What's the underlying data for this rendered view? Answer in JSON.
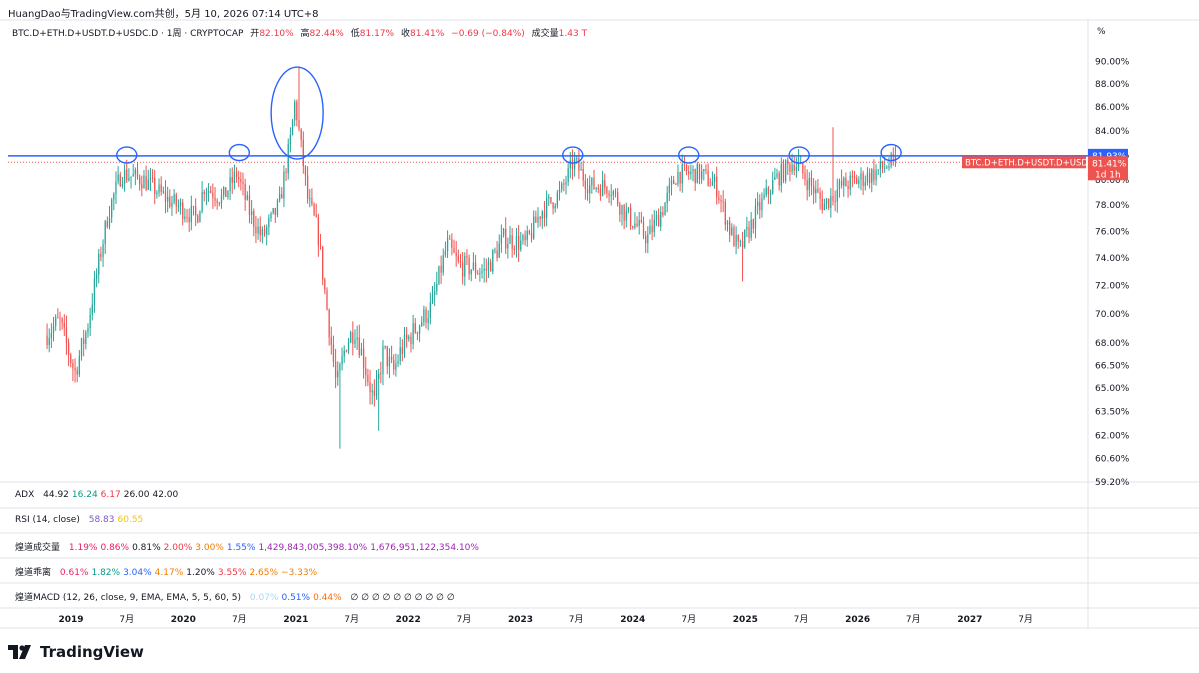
{
  "header": {
    "caption": "HuangDao与TradingView.com共创，5月 10, 2026 07:14 UTC+8"
  },
  "legend": {
    "symbol": "BTC.D+ETH.D+USDT.D+USDC.D · 1周 · CRYPTOCAP",
    "open_label": "开",
    "open": "82.10%",
    "high_label": "高",
    "high": "82.44%",
    "low_label": "低",
    "low": "81.17%",
    "close_label": "收",
    "close": "81.41%",
    "change": "−0.69 (−0.84%)",
    "volume_label": "成交量",
    "volume": "1.43 T"
  },
  "axis": {
    "unit": "%"
  },
  "price_tags": {
    "line_value": "81.93%",
    "series_name": "BTC.D+ETH.D+USDT.D+USDC.D",
    "last_value": "81.41%",
    "countdown": "1d 1h"
  },
  "indicators": {
    "adx": {
      "name": "ADX",
      "values": [
        "44.92",
        "16.24",
        "6.17",
        "26.00",
        "42.00"
      ]
    },
    "rsi": {
      "name": "RSI (14, close)",
      "values": [
        "58.83",
        "60.55"
      ]
    },
    "vol": {
      "name": "煌道成交量",
      "values": [
        "1.19%",
        "0.86%",
        "0.81%",
        "2.00%",
        "3.00%",
        "1.55%",
        "1,429,843,005,398.10%",
        "1,676,951,122,354.10%"
      ]
    },
    "dev": {
      "name": "煌道乖离",
      "values": [
        "0.61%",
        "1.82%",
        "3.04%",
        "4.17%",
        "1.20%",
        "3.55%",
        "2.65%",
        "−3.33%"
      ]
    },
    "macd": {
      "name": "煌道MACD (12, 26, close, 9, EMA, EMA, 5, 5, 60, 5)",
      "values": [
        "0.07%",
        "0.51%",
        "0.44%"
      ],
      "empty": "∅ ∅ ∅ ∅ ∅ ∅ ∅ ∅ ∅ ∅"
    }
  },
  "brand": {
    "name": "TradingView"
  },
  "colors": {
    "up": "#26a69a",
    "down": "#ef5350",
    "hline": "#2962ff",
    "drawing": "#2962ff",
    "adx": [
      "#131722",
      "#089981",
      "#f23645",
      "#131722",
      "#131722"
    ],
    "rsi": [
      "#7e57c2",
      "#f7c400"
    ],
    "vol": [
      "#e91e63",
      "#e91e63",
      "#131722",
      "#f23645",
      "#f57c00",
      "#2962ff",
      "#9c27b0",
      "#9c27b0"
    ],
    "dev": [
      "#e91e63",
      "#089981",
      "#2962ff",
      "#f57c00",
      "#131722",
      "#f23645",
      "#f57c00",
      "#f57c00"
    ],
    "macd": [
      "#a5d8f3",
      "#2962ff",
      "#ff6d00"
    ]
  },
  "chart_data": {
    "type": "candlestick",
    "title": "BTC.D+ETH.D+USDT.D+USDC.D · 1周 · CRYPTOCAP",
    "interval": "1周",
    "y_scale": "log",
    "ylim": [
      59.2,
      91.5
    ],
    "y_ticks": [
      "90.00%",
      "88.00%",
      "86.00%",
      "84.00%",
      "82.00%",
      "80.00%",
      "78.00%",
      "76.00%",
      "74.00%",
      "72.00%",
      "70.00%",
      "68.00%",
      "66.50%",
      "65.00%",
      "63.50%",
      "62.00%",
      "60.60%",
      "59.20%"
    ],
    "x_ticks": [
      "2019",
      "7月",
      "2020",
      "7月",
      "2021",
      "7月",
      "2022",
      "7月",
      "2023",
      "7月",
      "2024",
      "7月",
      "2025",
      "7月",
      "2026",
      "7月",
      "2027",
      "7月"
    ],
    "horizontal_line": 81.93,
    "last_close": 81.41,
    "ohlc_path_anchors": [
      {
        "date": "2018-10-15",
        "value": 68.5
      },
      {
        "date": "2018-12-01",
        "value": 69.5
      },
      {
        "date": "2019-01-20",
        "value": 66.0
      },
      {
        "date": "2019-03-01",
        "value": 69.0
      },
      {
        "date": "2019-05-10",
        "value": 77.5
      },
      {
        "date": "2019-06-20",
        "value": 80.5
      },
      {
        "date": "2019-09-01",
        "value": 80.0
      },
      {
        "date": "2019-11-15",
        "value": 78.5
      },
      {
        "date": "2020-02-20",
        "value": 77.0
      },
      {
        "date": "2020-03-15",
        "value": 79.5
      },
      {
        "date": "2020-05-15",
        "value": 78.5
      },
      {
        "date": "2020-06-30",
        "value": 80.5
      },
      {
        "date": "2020-08-10",
        "value": 77.5
      },
      {
        "date": "2020-09-20",
        "value": 75.5
      },
      {
        "date": "2020-11-15",
        "value": 78.0
      },
      {
        "date": "2020-12-20",
        "value": 83.0
      },
      {
        "date": "2021-01-05",
        "value": 86.5
      },
      {
        "date": "2021-02-15",
        "value": 78.5
      },
      {
        "date": "2021-03-20",
        "value": 76.0
      },
      {
        "date": "2021-04-15",
        "value": 71.0
      },
      {
        "date": "2021-05-20",
        "value": 65.0
      },
      {
        "date": "2021-06-20",
        "value": 68.0
      },
      {
        "date": "2021-07-20",
        "value": 69.0
      },
      {
        "date": "2021-08-20",
        "value": 66.5
      },
      {
        "date": "2021-09-20",
        "value": 64.0
      },
      {
        "date": "2021-10-20",
        "value": 67.5
      },
      {
        "date": "2021-11-20",
        "value": 66.0
      },
      {
        "date": "2021-12-15",
        "value": 67.5
      },
      {
        "date": "2022-02-01",
        "value": 69.0
      },
      {
        "date": "2022-03-25",
        "value": 70.5
      },
      {
        "date": "2022-05-15",
        "value": 75.0
      },
      {
        "date": "2022-06-20",
        "value": 73.5
      },
      {
        "date": "2022-09-15",
        "value": 73.0
      },
      {
        "date": "2022-11-15",
        "value": 75.5
      },
      {
        "date": "2023-01-25",
        "value": 75.0
      },
      {
        "date": "2023-03-15",
        "value": 77.5
      },
      {
        "date": "2023-05-20",
        "value": 79.0
      },
      {
        "date": "2023-06-30",
        "value": 81.5
      },
      {
        "date": "2023-08-20",
        "value": 79.5
      },
      {
        "date": "2023-10-25",
        "value": 79.5
      },
      {
        "date": "2023-12-10",
        "value": 77.5
      },
      {
        "date": "2024-02-25",
        "value": 75.5
      },
      {
        "date": "2024-04-20",
        "value": 78.0
      },
      {
        "date": "2024-05-30",
        "value": 80.5
      },
      {
        "date": "2024-08-15",
        "value": 80.5
      },
      {
        "date": "2024-10-05",
        "value": 79.5
      },
      {
        "date": "2024-11-20",
        "value": 76.0
      },
      {
        "date": "2024-12-20",
        "value": 74.5
      },
      {
        "date": "2025-02-15",
        "value": 77.5
      },
      {
        "date": "2025-04-15",
        "value": 80.0
      },
      {
        "date": "2025-06-15",
        "value": 81.5
      },
      {
        "date": "2025-08-10",
        "value": 79.5
      },
      {
        "date": "2025-09-20",
        "value": 78.0
      },
      {
        "date": "2025-11-15",
        "value": 79.5
      },
      {
        "date": "2026-01-15",
        "value": 80.0
      },
      {
        "date": "2026-03-01",
        "value": 80.5
      },
      {
        "date": "2026-04-15",
        "value": 81.2
      },
      {
        "date": "2026-05-10",
        "value": 81.41
      }
    ],
    "spikes": [
      {
        "date": "2021-01-10",
        "high": 89.5
      },
      {
        "date": "2025-06-25",
        "high": 82.5
      },
      {
        "date": "2025-10-15",
        "high": 84.3
      },
      {
        "date": "2021-05-22",
        "low": 61.2
      },
      {
        "date": "2021-09-25",
        "low": 62.3
      },
      {
        "date": "2024-12-25",
        "low": 72.3
      }
    ],
    "drawn_circles_at": [
      {
        "date": "2019-07-01",
        "value": 82.0
      },
      {
        "date": "2020-07-01",
        "value": 82.2
      },
      {
        "date": "2021-01-05",
        "value": 85.5
      },
      {
        "date": "2023-06-20",
        "value": 82.0
      },
      {
        "date": "2024-07-01",
        "value": 82.0
      },
      {
        "date": "2025-06-25",
        "value": 82.0
      },
      {
        "date": "2026-04-20",
        "value": 82.2
      }
    ]
  }
}
